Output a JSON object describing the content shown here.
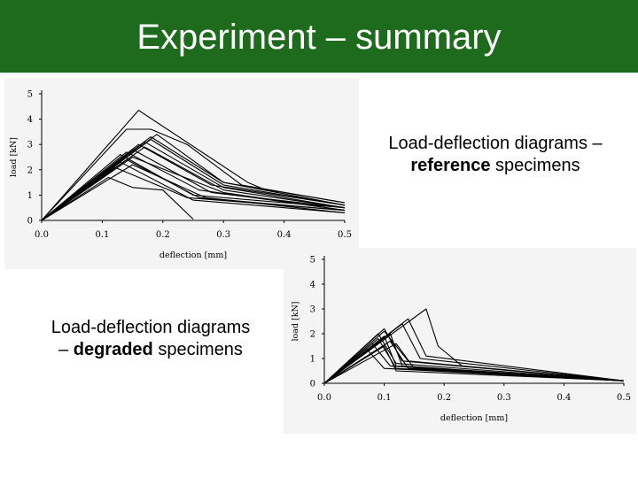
{
  "slide": {
    "title": "Experiment – summary",
    "title_bar_color": "#1e6b1e"
  },
  "captions": {
    "reference": {
      "line1": "Load-deflection diagrams –",
      "bold": "reference",
      "rest": " specimens"
    },
    "degraded": {
      "line1": "Load-deflection diagrams",
      "prefix": "– ",
      "bold": "degraded",
      "rest": " specimens"
    }
  },
  "chart_data": [
    {
      "type": "line",
      "xlabel": "deflection [mm]",
      "ylabel": "load [kN]",
      "xlim": [
        0,
        0.5
      ],
      "ylim": [
        0,
        5
      ],
      "x_ticks": [
        "0.0",
        "0.1",
        "0.2",
        "0.3",
        "0.4",
        "0.5"
      ],
      "y_ticks": [
        "0",
        "1",
        "2",
        "3",
        "4",
        "5"
      ],
      "series": [
        {
          "x": [
            0,
            0.16,
            0.34,
            0.37,
            0.39
          ],
          "y": [
            0,
            4.35,
            1.5,
            1.2,
            1.1
          ]
        },
        {
          "x": [
            0,
            0.14,
            0.18,
            0.24,
            0.33,
            0.5
          ],
          "y": [
            0,
            3.6,
            3.6,
            3.0,
            1.4,
            0.7
          ]
        },
        {
          "x": [
            0,
            0.19,
            0.3,
            0.5
          ],
          "y": [
            0,
            3.4,
            1.5,
            0.7
          ]
        },
        {
          "x": [
            0,
            0.18,
            0.3,
            0.5
          ],
          "y": [
            0,
            3.3,
            1.5,
            0.6
          ]
        },
        {
          "x": [
            0,
            0.18,
            0.3,
            0.5
          ],
          "y": [
            0,
            3.2,
            1.4,
            0.6
          ]
        },
        {
          "x": [
            0,
            0.17,
            0.3,
            0.5
          ],
          "y": [
            0,
            3.1,
            1.3,
            0.5
          ]
        },
        {
          "x": [
            0,
            0.16,
            0.28,
            0.5
          ],
          "y": [
            0,
            3.0,
            1.4,
            0.6
          ]
        },
        {
          "x": [
            0,
            0.17,
            0.3,
            0.5
          ],
          "y": [
            0,
            2.9,
            1.2,
            0.5
          ]
        },
        {
          "x": [
            0,
            0.15,
            0.28,
            0.5
          ],
          "y": [
            0,
            2.8,
            1.1,
            0.5
          ]
        },
        {
          "x": [
            0,
            0.14,
            0.26,
            0.5
          ],
          "y": [
            0,
            2.7,
            1.2,
            0.4
          ]
        },
        {
          "x": [
            0,
            0.13,
            0.25,
            0.5
          ],
          "y": [
            0,
            2.6,
            1.0,
            0.5
          ]
        },
        {
          "x": [
            0,
            0.15,
            0.3,
            0.5
          ],
          "y": [
            0,
            2.5,
            1.1,
            0.4
          ]
        },
        {
          "x": [
            0,
            0.14,
            0.26,
            0.5
          ],
          "y": [
            0,
            2.4,
            0.9,
            0.4
          ]
        },
        {
          "x": [
            0,
            0.13,
            0.25,
            0.5
          ],
          "y": [
            0,
            2.3,
            0.8,
            0.3
          ]
        },
        {
          "x": [
            0,
            0.15,
            0.27,
            0.5
          ],
          "y": [
            0,
            2.2,
            0.9,
            0.3
          ]
        },
        {
          "x": [
            0,
            0.12,
            0.24,
            0.5
          ],
          "y": [
            0,
            2.1,
            0.9,
            0.4
          ]
        },
        {
          "x": [
            0,
            0.11,
            0.15,
            0.2,
            0.25
          ],
          "y": [
            0,
            1.7,
            1.3,
            1.2,
            0.05
          ]
        }
      ]
    },
    {
      "type": "line",
      "xlabel": "deflection [mm]",
      "ylabel": "load [kN]",
      "xlim": [
        0,
        0.5
      ],
      "ylim": [
        0,
        5
      ],
      "x_ticks": [
        "0.0",
        "0.1",
        "0.2",
        "0.3",
        "0.4",
        "0.5"
      ],
      "y_ticks": [
        "0",
        "1",
        "2",
        "3",
        "4",
        "5"
      ],
      "series": [
        {
          "x": [
            0,
            0.17,
            0.19,
            0.23,
            0.5
          ],
          "y": [
            0,
            3.0,
            1.5,
            0.7,
            0.1
          ]
        },
        {
          "x": [
            0,
            0.14,
            0.17,
            0.5
          ],
          "y": [
            0,
            2.6,
            1.1,
            0.1
          ]
        },
        {
          "x": [
            0,
            0.13,
            0.16,
            0.5
          ],
          "y": [
            0,
            2.4,
            1.0,
            0.1
          ]
        },
        {
          "x": [
            0,
            0.1,
            0.13,
            0.5
          ],
          "y": [
            0,
            2.2,
            0.9,
            0.1
          ]
        },
        {
          "x": [
            0,
            0.1,
            0.14,
            0.5
          ],
          "y": [
            0,
            2.1,
            0.9,
            0.1
          ]
        },
        {
          "x": [
            0,
            0.09,
            0.12,
            0.5
          ],
          "y": [
            0,
            2.0,
            0.8,
            0.1
          ]
        },
        {
          "x": [
            0,
            0.11,
            0.13,
            0.5
          ],
          "y": [
            0,
            2.0,
            0.7,
            0.1
          ]
        },
        {
          "x": [
            0,
            0.1,
            0.12,
            0.5
          ],
          "y": [
            0,
            1.9,
            0.7,
            0.1
          ]
        },
        {
          "x": [
            0,
            0.09,
            0.12,
            0.5
          ],
          "y": [
            0,
            1.8,
            0.6,
            0.1
          ]
        },
        {
          "x": [
            0,
            0.11,
            0.14,
            0.5
          ],
          "y": [
            0,
            1.7,
            0.6,
            0.1
          ]
        },
        {
          "x": [
            0,
            0.08,
            0.11,
            0.5
          ],
          "y": [
            0,
            1.6,
            0.7,
            0.1
          ]
        },
        {
          "x": [
            0,
            0.12,
            0.15,
            0.5
          ],
          "y": [
            0,
            1.6,
            0.6,
            0.1
          ]
        },
        {
          "x": [
            0,
            0.1,
            0.12,
            0.5
          ],
          "y": [
            0,
            1.5,
            0.5,
            0.1
          ]
        },
        {
          "x": [
            0,
            0.07,
            0.1,
            0.5
          ],
          "y": [
            0,
            1.4,
            0.6,
            0.1
          ]
        }
      ]
    }
  ]
}
